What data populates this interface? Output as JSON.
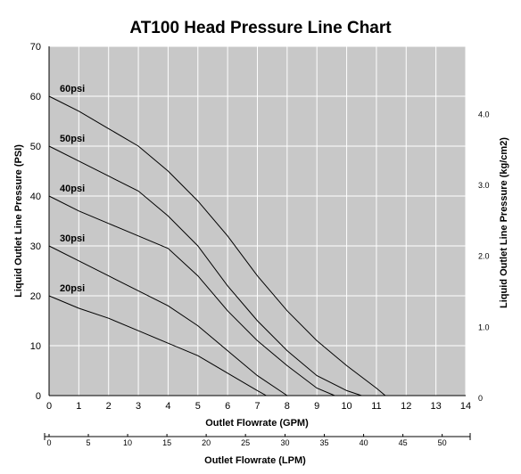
{
  "chart_data": {
    "type": "line",
    "title": "AT100 Head Pressure Line Chart",
    "xlabel": "Outlet Flowrate (GPM)",
    "ylabel": "Liquid Outlet Line Pressure (PSI)",
    "y2label": "Liquid Outlet Line Pressure (kg/cm2)",
    "x2label": "Outlet Flowrate (LPM)",
    "xlim": [
      0,
      14
    ],
    "ylim": [
      0,
      70
    ],
    "xticks": [
      0,
      1,
      2,
      3,
      4,
      5,
      6,
      7,
      8,
      9,
      10,
      11,
      12,
      13,
      14
    ],
    "yticks": [
      0,
      10,
      20,
      30,
      40,
      50,
      60,
      70
    ],
    "y2ticks": [
      {
        "label": "0",
        "psi": 0
      },
      {
        "label": "1.0",
        "psi": 14.22
      },
      {
        "label": "2.0",
        "psi": 28.45
      },
      {
        "label": "3.0",
        "psi": 42.67
      },
      {
        "label": "4.0",
        "psi": 56.89
      }
    ],
    "x2ticks": [
      {
        "label": "0",
        "gpm": 0
      },
      {
        "label": "5",
        "gpm": 1.32
      },
      {
        "label": "10",
        "gpm": 2.64
      },
      {
        "label": "15",
        "gpm": 3.96
      },
      {
        "label": "20",
        "gpm": 5.28
      },
      {
        "label": "25",
        "gpm": 6.6
      },
      {
        "label": "30",
        "gpm": 7.93
      },
      {
        "label": "35",
        "gpm": 9.25
      },
      {
        "label": "40",
        "gpm": 10.57
      },
      {
        "label": "45",
        "gpm": 11.89
      },
      {
        "label": "50",
        "gpm": 13.21
      }
    ],
    "grid": true,
    "series": [
      {
        "name": "20psi",
        "points": [
          [
            0,
            20
          ],
          [
            1,
            17.5
          ],
          [
            2,
            15.5
          ],
          [
            3,
            13
          ],
          [
            4,
            10.5
          ],
          [
            5,
            8
          ],
          [
            6,
            4.5
          ],
          [
            7,
            1
          ],
          [
            7.3,
            0
          ]
        ]
      },
      {
        "name": "30psi",
        "points": [
          [
            0,
            30
          ],
          [
            1,
            27
          ],
          [
            2,
            24
          ],
          [
            3,
            21
          ],
          [
            4,
            18
          ],
          [
            5,
            14
          ],
          [
            6,
            9
          ],
          [
            7,
            4
          ],
          [
            8,
            0
          ]
        ]
      },
      {
        "name": "40psi",
        "points": [
          [
            0,
            40
          ],
          [
            1,
            37
          ],
          [
            2,
            34.5
          ],
          [
            3,
            32
          ],
          [
            4,
            29.5
          ],
          [
            5,
            24
          ],
          [
            6,
            17
          ],
          [
            7,
            11
          ],
          [
            8,
            6
          ],
          [
            9,
            1.5
          ],
          [
            9.6,
            0
          ]
        ]
      },
      {
        "name": "50psi",
        "points": [
          [
            0,
            50
          ],
          [
            1,
            47
          ],
          [
            2,
            44
          ],
          [
            3,
            41
          ],
          [
            4,
            36
          ],
          [
            5,
            30
          ],
          [
            6,
            22
          ],
          [
            7,
            15
          ],
          [
            8,
            9
          ],
          [
            9,
            4
          ],
          [
            10,
            1
          ],
          [
            10.5,
            0
          ]
        ]
      },
      {
        "name": "60psi",
        "points": [
          [
            0,
            60
          ],
          [
            1,
            57
          ],
          [
            2,
            53.5
          ],
          [
            3,
            50
          ],
          [
            4,
            45
          ],
          [
            5,
            39
          ],
          [
            6,
            32
          ],
          [
            7,
            24
          ],
          [
            8,
            17
          ],
          [
            9,
            11
          ],
          [
            10,
            6
          ],
          [
            11,
            1.5
          ],
          [
            11.3,
            0
          ]
        ]
      }
    ]
  }
}
